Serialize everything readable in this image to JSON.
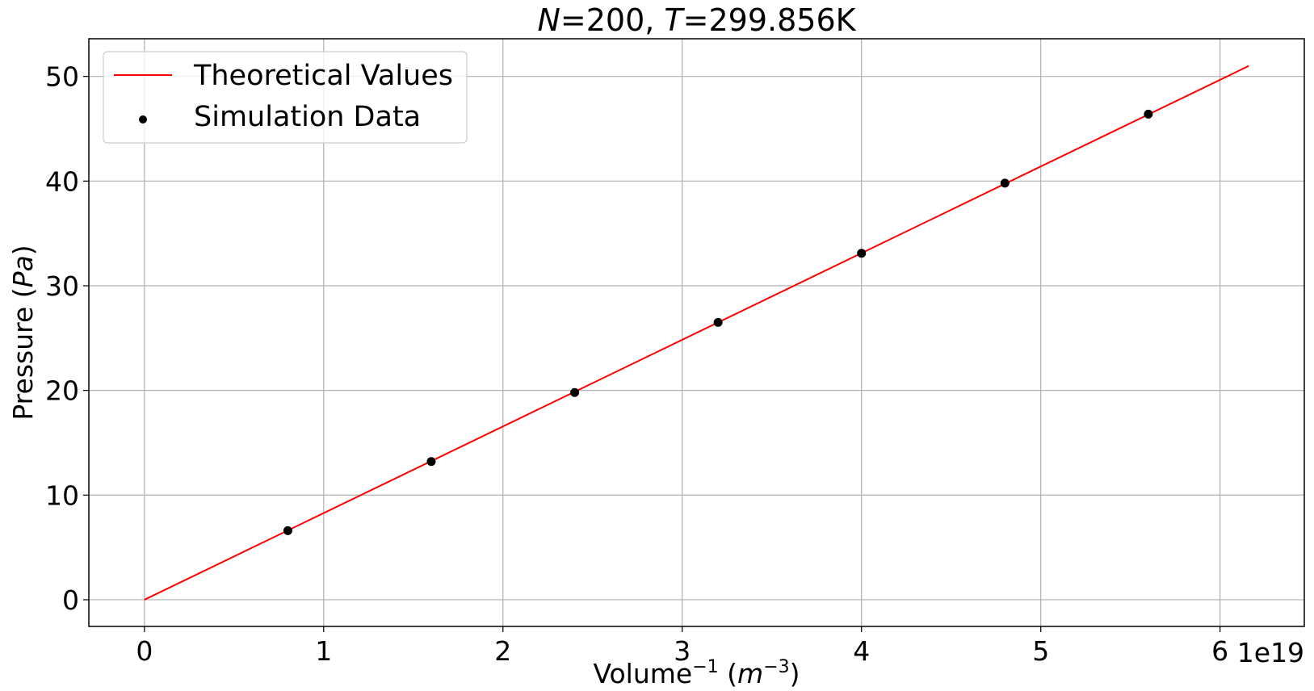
{
  "chart_data": {
    "type": "scatter",
    "title": {
      "parts": [
        {
          "text": "N",
          "italic": true
        },
        {
          "text": "=200, ",
          "italic": false
        },
        {
          "text": "T",
          "italic": true
        },
        {
          "text": "=299.856K",
          "italic": false
        }
      ]
    },
    "xlabel": {
      "base": "Volume",
      "base_sup": "−1",
      "unit_open": " (",
      "unit_var": "m",
      "unit_sup": "−3",
      "unit_close": ")"
    },
    "ylabel": {
      "base": "Pressure (",
      "unit_var": "Pa",
      "close": ")"
    },
    "x_offset_label": "1e19",
    "x_scale": 1e+19,
    "xlim": [
      -0.31,
      6.47
    ],
    "ylim": [
      -2.55,
      53.6
    ],
    "xticks": [
      0,
      1,
      2,
      3,
      4,
      5,
      6
    ],
    "xtick_labels": [
      "0",
      "1",
      "2",
      "3",
      "4",
      "5",
      "6"
    ],
    "yticks": [
      0,
      10,
      20,
      30,
      40,
      50
    ],
    "ytick_labels": [
      "0",
      "10",
      "20",
      "30",
      "40",
      "50"
    ],
    "grid": true,
    "legend_position": "top-left",
    "series": [
      {
        "name": "Theoretical Values",
        "kind": "line",
        "color": "#ff0000",
        "x": [
          0,
          6.16
        ],
        "y": [
          0,
          51.0
        ]
      },
      {
        "name": "Simulation Data",
        "kind": "scatter",
        "color": "#000000",
        "x": [
          0.8,
          1.6,
          2.4,
          3.2,
          4.0,
          4.8,
          5.6
        ],
        "y": [
          6.6,
          13.2,
          19.8,
          26.5,
          33.1,
          39.8,
          46.4
        ]
      }
    ]
  }
}
